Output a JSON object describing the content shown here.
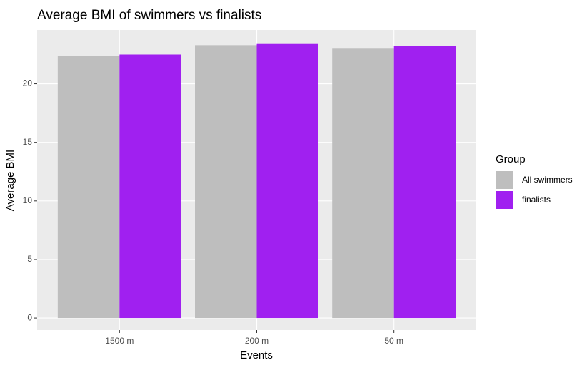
{
  "chart_data": {
    "type": "bar",
    "title": "Average BMI of swimmers vs finalists",
    "x_label": "Events",
    "y_label": "Average BMI",
    "categories": [
      "1500 m",
      "200 m",
      "50 m"
    ],
    "series": [
      {
        "name": "All swimmers",
        "color": "#bebebe",
        "values": [
          22.4,
          23.3,
          23.0
        ]
      },
      {
        "name": "finalists",
        "color": "#a020f0",
        "values": [
          22.5,
          23.4,
          23.2
        ]
      }
    ],
    "legend_title": "Group",
    "legend": "right",
    "ylim": [
      -1.03,
      24.6
    ],
    "yticks": [
      0,
      5,
      10,
      15,
      20
    ],
    "grid": true
  }
}
